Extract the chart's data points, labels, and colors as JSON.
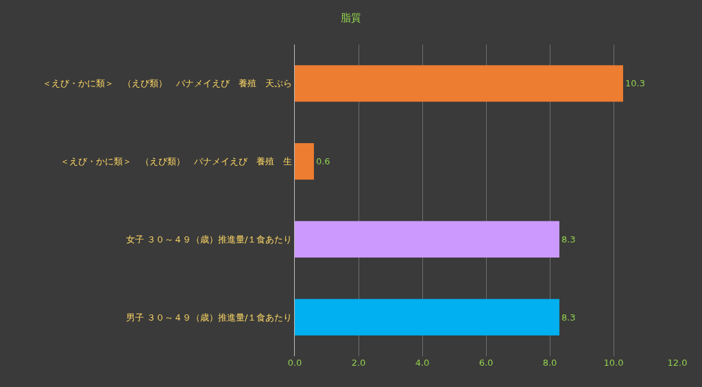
{
  "chart_data": {
    "type": "bar",
    "orientation": "horizontal",
    "title": "脂質",
    "categories": [
      "＜えび・かに類＞　（えび類）　バナメイえび　養殖　天ぷら",
      "＜えび・かに類＞　（えび類）　バナメイえび　養殖　生",
      "女子 ３０～４９（歳）推進量/１食あたり",
      "男子 ３０～４９（歳）推進量/１食あたり"
    ],
    "values": [
      10.3,
      0.6,
      8.3,
      8.3
    ],
    "colors": [
      "#ed7d31",
      "#ed7d31",
      "#cc99ff",
      "#00b0f0"
    ],
    "data_labels": true,
    "grid": "x",
    "xlim": [
      0,
      12
    ],
    "xticks": [
      {
        "value": 0,
        "label": "0.0"
      },
      {
        "value": 2,
        "label": "2.0"
      },
      {
        "value": 4,
        "label": "4.0"
      },
      {
        "value": 6,
        "label": "6.0"
      },
      {
        "value": 8,
        "label": "8.0"
      },
      {
        "value": 10,
        "label": "10.0"
      },
      {
        "value": 12,
        "label": "12.0"
      }
    ]
  }
}
